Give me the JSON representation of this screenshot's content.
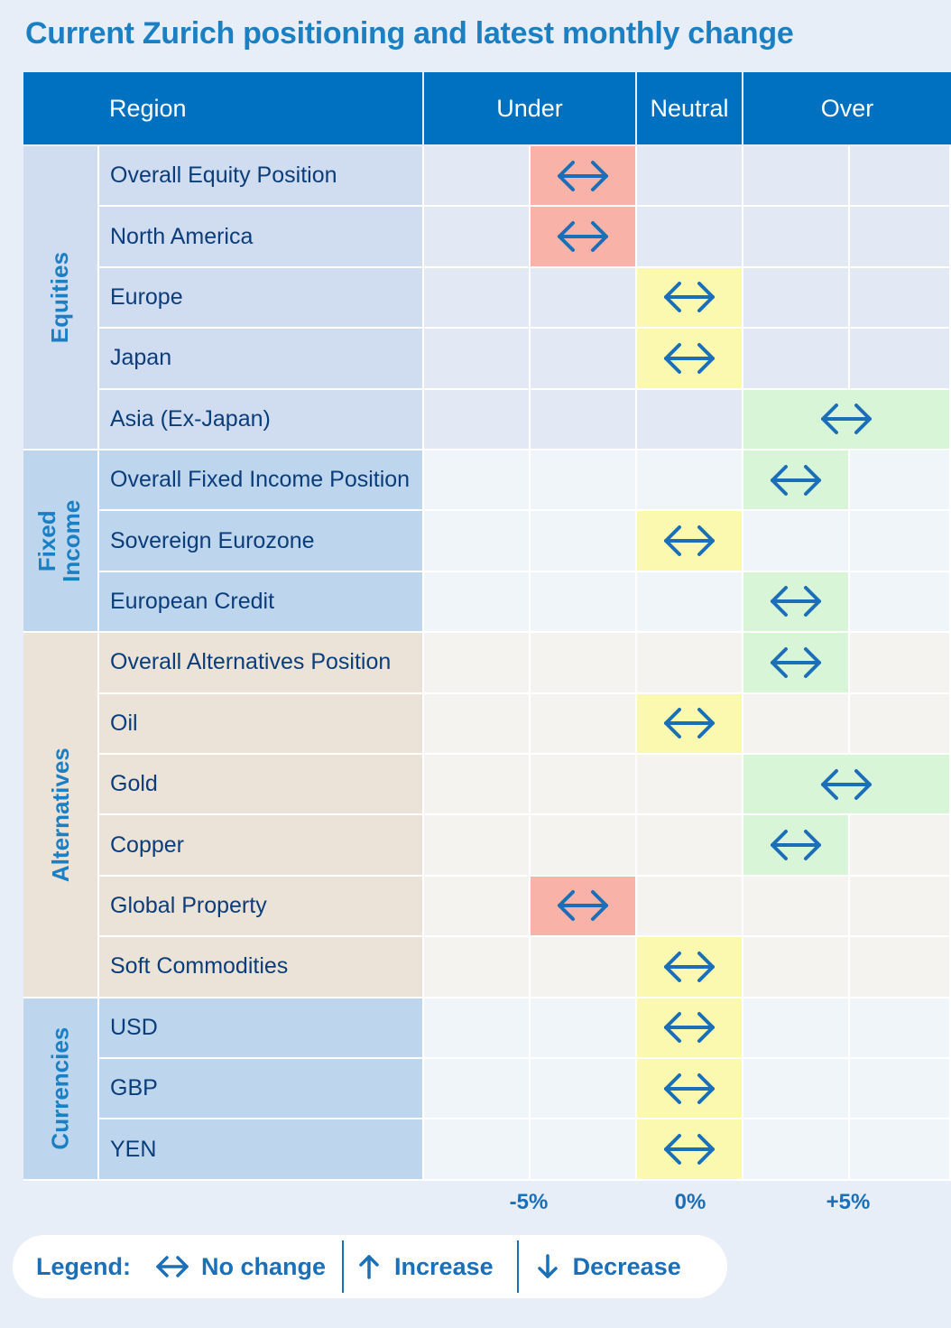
{
  "title": "Current Zurich positioning and latest monthly change",
  "header": {
    "region": "Region",
    "under": "Under",
    "neutral": "Neutral",
    "over": "Over"
  },
  "chart_data": {
    "type": "table",
    "title": "Current Zurich positioning and latest monthly change",
    "columns": [
      "Under",
      "Neutral",
      "Over"
    ],
    "axis_ticks": [
      "-5%",
      "0%",
      "+5%"
    ],
    "position_scale": {
      "-2": "strong under (-5%)",
      "-1": "under",
      "0": "neutral (0%)",
      "1": "over",
      "2": "strong over (+5%)"
    },
    "groups": [
      {
        "name": "Equities",
        "rows": [
          {
            "label": "Overall Equity Position",
            "position": -1,
            "change": "no-change"
          },
          {
            "label": "North America",
            "position": -1,
            "change": "no-change"
          },
          {
            "label": "Europe",
            "position": 0,
            "change": "no-change"
          },
          {
            "label": "Japan",
            "position": 0,
            "change": "no-change"
          },
          {
            "label": "Asia (Ex-Japan)",
            "position": 2,
            "change": "no-change"
          }
        ]
      },
      {
        "name": "Fixed Income",
        "rows": [
          {
            "label": "Overall Fixed Income Position",
            "position": 1,
            "change": "no-change"
          },
          {
            "label": "Sovereign Eurozone",
            "position": 0,
            "change": "no-change"
          },
          {
            "label": "European Credit",
            "position": 1,
            "change": "no-change"
          }
        ]
      },
      {
        "name": "Alternatives",
        "rows": [
          {
            "label": "Overall Alternatives Position",
            "position": 1,
            "change": "no-change"
          },
          {
            "label": "Oil",
            "position": 0,
            "change": "no-change"
          },
          {
            "label": "Gold",
            "position": 2,
            "change": "no-change"
          },
          {
            "label": "Copper",
            "position": 1,
            "change": "no-change"
          },
          {
            "label": "Global Property",
            "position": -1,
            "change": "no-change"
          },
          {
            "label": "Soft Commodities",
            "position": 0,
            "change": "no-change"
          }
        ]
      },
      {
        "name": "Currencies",
        "rows": [
          {
            "label": "USD",
            "position": 0,
            "change": "no-change"
          },
          {
            "label": "GBP",
            "position": 0,
            "change": "no-change"
          },
          {
            "label": "YEN",
            "position": 0,
            "change": "no-change"
          }
        ]
      }
    ]
  },
  "legend": {
    "label": "Legend:",
    "items": [
      {
        "icon": "double-arrow-icon",
        "text": "No change"
      },
      {
        "icon": "up-arrow-icon",
        "text": "Increase"
      },
      {
        "icon": "down-arrow-icon",
        "text": "Decrease"
      }
    ]
  },
  "colors": {
    "title": "#1b7fc4",
    "header": "#0070c0",
    "arrow": "#1b6fb8",
    "under": "#f9b2a8",
    "neutral": "#fbf8b0",
    "over": "#d8f5d8"
  }
}
